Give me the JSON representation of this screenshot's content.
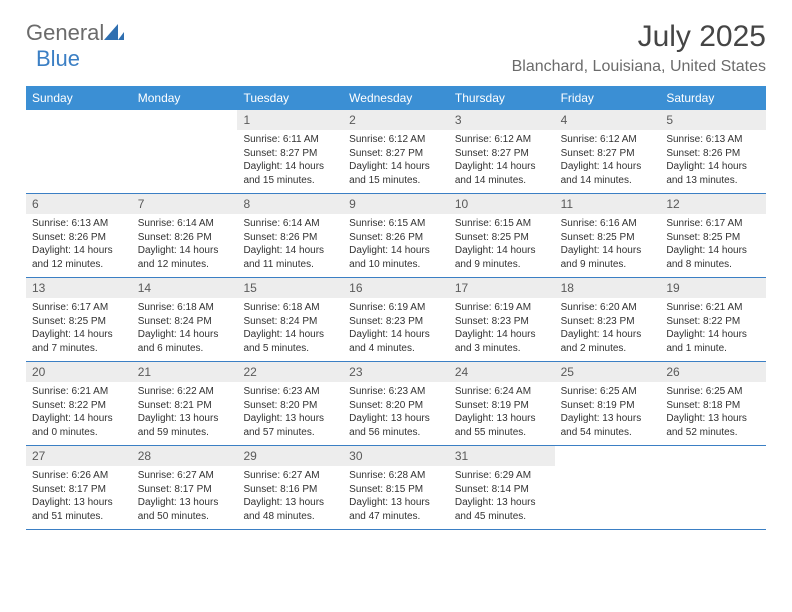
{
  "logo": {
    "text_general": "General",
    "text_blue": "Blue",
    "triangle_color": "#2f6fb0",
    "general_color": "#6b6b6b",
    "blue_color": "#3b7fc4"
  },
  "header": {
    "title": "July 2025",
    "location": "Blanchard, Louisiana, United States",
    "title_color": "#454545",
    "location_color": "#6b6b6b",
    "title_fontsize": 30,
    "location_fontsize": 16
  },
  "styling": {
    "dow_bg": "#3b8fd4",
    "dow_text_color": "#ffffff",
    "daynum_bg": "#ededed",
    "daynum_color": "#5a5a5a",
    "border_color": "#3b7fc4",
    "body_text_color": "#323232",
    "page_bg": "#ffffff",
    "dow_fontsize": 12,
    "daynum_fontsize": 12,
    "body_fontsize": 10
  },
  "days_of_week": [
    "Sunday",
    "Monday",
    "Tuesday",
    "Wednesday",
    "Thursday",
    "Friday",
    "Saturday"
  ],
  "weeks": [
    [
      null,
      null,
      {
        "n": "1",
        "sr": "Sunrise: 6:11 AM",
        "ss": "Sunset: 8:27 PM",
        "dl": "Daylight: 14 hours and 15 minutes."
      },
      {
        "n": "2",
        "sr": "Sunrise: 6:12 AM",
        "ss": "Sunset: 8:27 PM",
        "dl": "Daylight: 14 hours and 15 minutes."
      },
      {
        "n": "3",
        "sr": "Sunrise: 6:12 AM",
        "ss": "Sunset: 8:27 PM",
        "dl": "Daylight: 14 hours and 14 minutes."
      },
      {
        "n": "4",
        "sr": "Sunrise: 6:12 AM",
        "ss": "Sunset: 8:27 PM",
        "dl": "Daylight: 14 hours and 14 minutes."
      },
      {
        "n": "5",
        "sr": "Sunrise: 6:13 AM",
        "ss": "Sunset: 8:26 PM",
        "dl": "Daylight: 14 hours and 13 minutes."
      }
    ],
    [
      {
        "n": "6",
        "sr": "Sunrise: 6:13 AM",
        "ss": "Sunset: 8:26 PM",
        "dl": "Daylight: 14 hours and 12 minutes."
      },
      {
        "n": "7",
        "sr": "Sunrise: 6:14 AM",
        "ss": "Sunset: 8:26 PM",
        "dl": "Daylight: 14 hours and 12 minutes."
      },
      {
        "n": "8",
        "sr": "Sunrise: 6:14 AM",
        "ss": "Sunset: 8:26 PM",
        "dl": "Daylight: 14 hours and 11 minutes."
      },
      {
        "n": "9",
        "sr": "Sunrise: 6:15 AM",
        "ss": "Sunset: 8:26 PM",
        "dl": "Daylight: 14 hours and 10 minutes."
      },
      {
        "n": "10",
        "sr": "Sunrise: 6:15 AM",
        "ss": "Sunset: 8:25 PM",
        "dl": "Daylight: 14 hours and 9 minutes."
      },
      {
        "n": "11",
        "sr": "Sunrise: 6:16 AM",
        "ss": "Sunset: 8:25 PM",
        "dl": "Daylight: 14 hours and 9 minutes."
      },
      {
        "n": "12",
        "sr": "Sunrise: 6:17 AM",
        "ss": "Sunset: 8:25 PM",
        "dl": "Daylight: 14 hours and 8 minutes."
      }
    ],
    [
      {
        "n": "13",
        "sr": "Sunrise: 6:17 AM",
        "ss": "Sunset: 8:25 PM",
        "dl": "Daylight: 14 hours and 7 minutes."
      },
      {
        "n": "14",
        "sr": "Sunrise: 6:18 AM",
        "ss": "Sunset: 8:24 PM",
        "dl": "Daylight: 14 hours and 6 minutes."
      },
      {
        "n": "15",
        "sr": "Sunrise: 6:18 AM",
        "ss": "Sunset: 8:24 PM",
        "dl": "Daylight: 14 hours and 5 minutes."
      },
      {
        "n": "16",
        "sr": "Sunrise: 6:19 AM",
        "ss": "Sunset: 8:23 PM",
        "dl": "Daylight: 14 hours and 4 minutes."
      },
      {
        "n": "17",
        "sr": "Sunrise: 6:19 AM",
        "ss": "Sunset: 8:23 PM",
        "dl": "Daylight: 14 hours and 3 minutes."
      },
      {
        "n": "18",
        "sr": "Sunrise: 6:20 AM",
        "ss": "Sunset: 8:23 PM",
        "dl": "Daylight: 14 hours and 2 minutes."
      },
      {
        "n": "19",
        "sr": "Sunrise: 6:21 AM",
        "ss": "Sunset: 8:22 PM",
        "dl": "Daylight: 14 hours and 1 minute."
      }
    ],
    [
      {
        "n": "20",
        "sr": "Sunrise: 6:21 AM",
        "ss": "Sunset: 8:22 PM",
        "dl": "Daylight: 14 hours and 0 minutes."
      },
      {
        "n": "21",
        "sr": "Sunrise: 6:22 AM",
        "ss": "Sunset: 8:21 PM",
        "dl": "Daylight: 13 hours and 59 minutes."
      },
      {
        "n": "22",
        "sr": "Sunrise: 6:23 AM",
        "ss": "Sunset: 8:20 PM",
        "dl": "Daylight: 13 hours and 57 minutes."
      },
      {
        "n": "23",
        "sr": "Sunrise: 6:23 AM",
        "ss": "Sunset: 8:20 PM",
        "dl": "Daylight: 13 hours and 56 minutes."
      },
      {
        "n": "24",
        "sr": "Sunrise: 6:24 AM",
        "ss": "Sunset: 8:19 PM",
        "dl": "Daylight: 13 hours and 55 minutes."
      },
      {
        "n": "25",
        "sr": "Sunrise: 6:25 AM",
        "ss": "Sunset: 8:19 PM",
        "dl": "Daylight: 13 hours and 54 minutes."
      },
      {
        "n": "26",
        "sr": "Sunrise: 6:25 AM",
        "ss": "Sunset: 8:18 PM",
        "dl": "Daylight: 13 hours and 52 minutes."
      }
    ],
    [
      {
        "n": "27",
        "sr": "Sunrise: 6:26 AM",
        "ss": "Sunset: 8:17 PM",
        "dl": "Daylight: 13 hours and 51 minutes."
      },
      {
        "n": "28",
        "sr": "Sunrise: 6:27 AM",
        "ss": "Sunset: 8:17 PM",
        "dl": "Daylight: 13 hours and 50 minutes."
      },
      {
        "n": "29",
        "sr": "Sunrise: 6:27 AM",
        "ss": "Sunset: 8:16 PM",
        "dl": "Daylight: 13 hours and 48 minutes."
      },
      {
        "n": "30",
        "sr": "Sunrise: 6:28 AM",
        "ss": "Sunset: 8:15 PM",
        "dl": "Daylight: 13 hours and 47 minutes."
      },
      {
        "n": "31",
        "sr": "Sunrise: 6:29 AM",
        "ss": "Sunset: 8:14 PM",
        "dl": "Daylight: 13 hours and 45 minutes."
      },
      null,
      null
    ]
  ]
}
